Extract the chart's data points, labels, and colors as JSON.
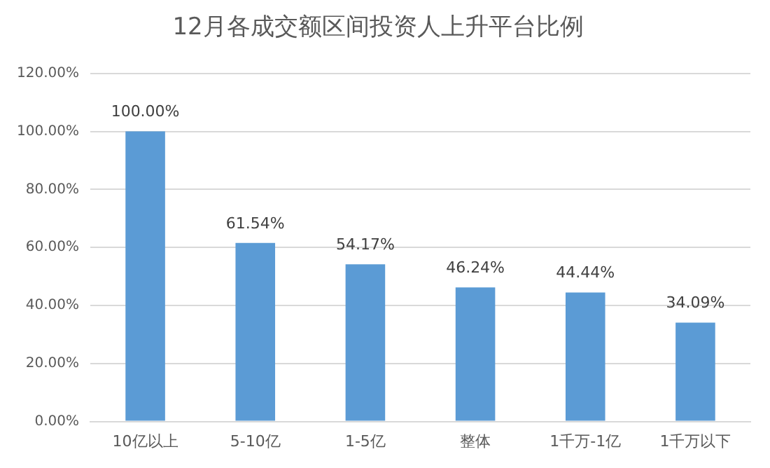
{
  "chart_data": {
    "type": "bar",
    "title": "12月各成交额区间投资人上升平台比例",
    "categories": [
      "10亿以上",
      "5-10亿",
      "1-5亿",
      "整体",
      "1千万-1亿",
      "1千万以下"
    ],
    "values": [
      100,
      61.54,
      54.17,
      46.24,
      44.44,
      34.09
    ],
    "value_labels": [
      "100.00%",
      "61.54%",
      "54.17%",
      "46.24%",
      "44.44%",
      "34.09%"
    ],
    "color": "#5b9bd5",
    "ylim": [
      0,
      120
    ],
    "yticks": [
      {
        "value": 0,
        "label": "0.00%"
      },
      {
        "value": 20,
        "label": "20.00%"
      },
      {
        "value": 40,
        "label": "40.00%"
      },
      {
        "value": 60,
        "label": "60.00%"
      },
      {
        "value": 80,
        "label": "80.00%"
      },
      {
        "value": 100,
        "label": "100.00%"
      },
      {
        "value": 120,
        "label": "120.00%"
      }
    ],
    "grid": "y"
  }
}
